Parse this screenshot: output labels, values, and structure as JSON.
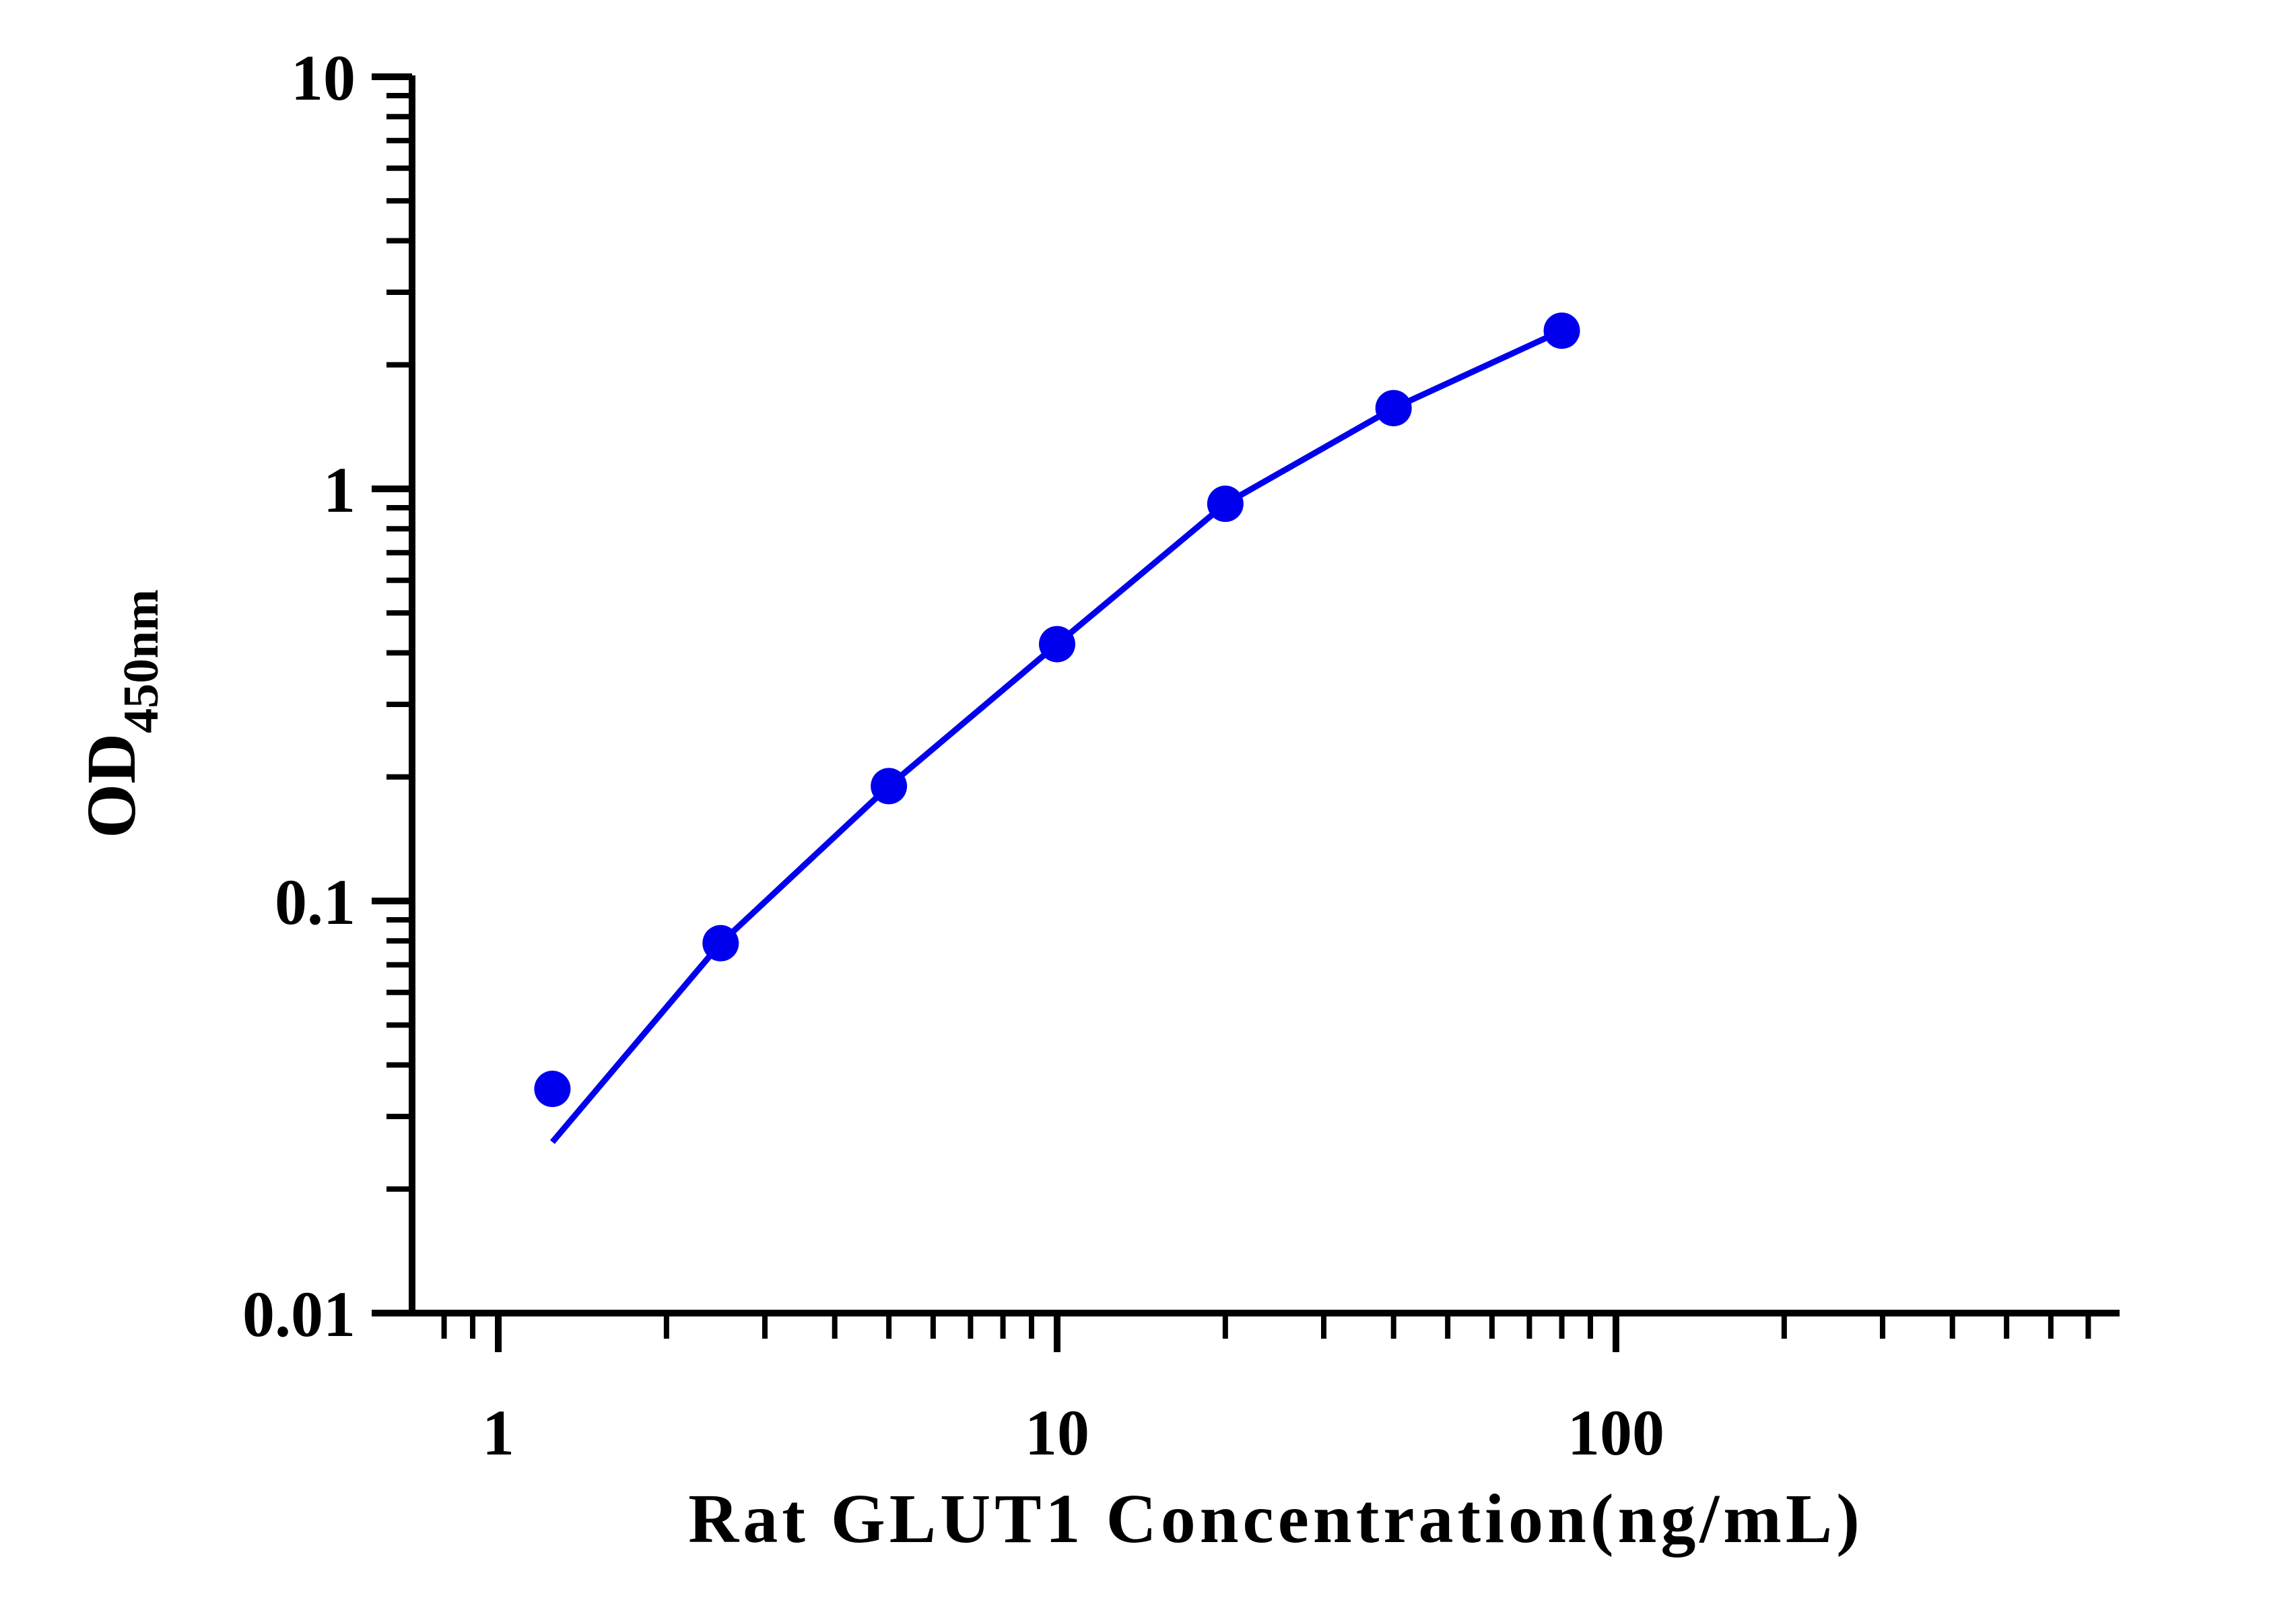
{
  "chart_data": {
    "type": "scatter",
    "title": "",
    "xlabel": "Rat GLUT1 Concentration(ng/mL)",
    "ylabel": {
      "main": "OD",
      "subscript": "450nm"
    },
    "x_scale": "log",
    "y_scale": "log",
    "xlim": [
      0.7,
      800
    ],
    "ylim": [
      0.01,
      10
    ],
    "x_ticks": [
      {
        "value": 1,
        "label": "1"
      },
      {
        "value": 10,
        "label": "10"
      },
      {
        "value": 100,
        "label": "100"
      }
    ],
    "y_ticks": [
      {
        "value": 0.01,
        "label": "0.01"
      },
      {
        "value": 0.1,
        "label": "0.1"
      },
      {
        "value": 1,
        "label": "1"
      },
      {
        "value": 10,
        "label": "10"
      }
    ],
    "grid": false,
    "legend": "none",
    "series": [
      {
        "x": [
          1.25,
          2.5,
          5,
          10,
          20,
          40,
          80
        ],
        "y": [
          0.035,
          0.079,
          0.19,
          0.42,
          0.92,
          1.57,
          2.42
        ]
      }
    ],
    "fit_curve": {
      "x": [
        1.25,
        2.5,
        5,
        10,
        20,
        40,
        80
      ],
      "y": [
        0.026,
        0.079,
        0.19,
        0.42,
        0.92,
        1.57,
        2.42
      ]
    },
    "colors": {
      "series": "#0000ee",
      "axis": "#000000"
    }
  }
}
